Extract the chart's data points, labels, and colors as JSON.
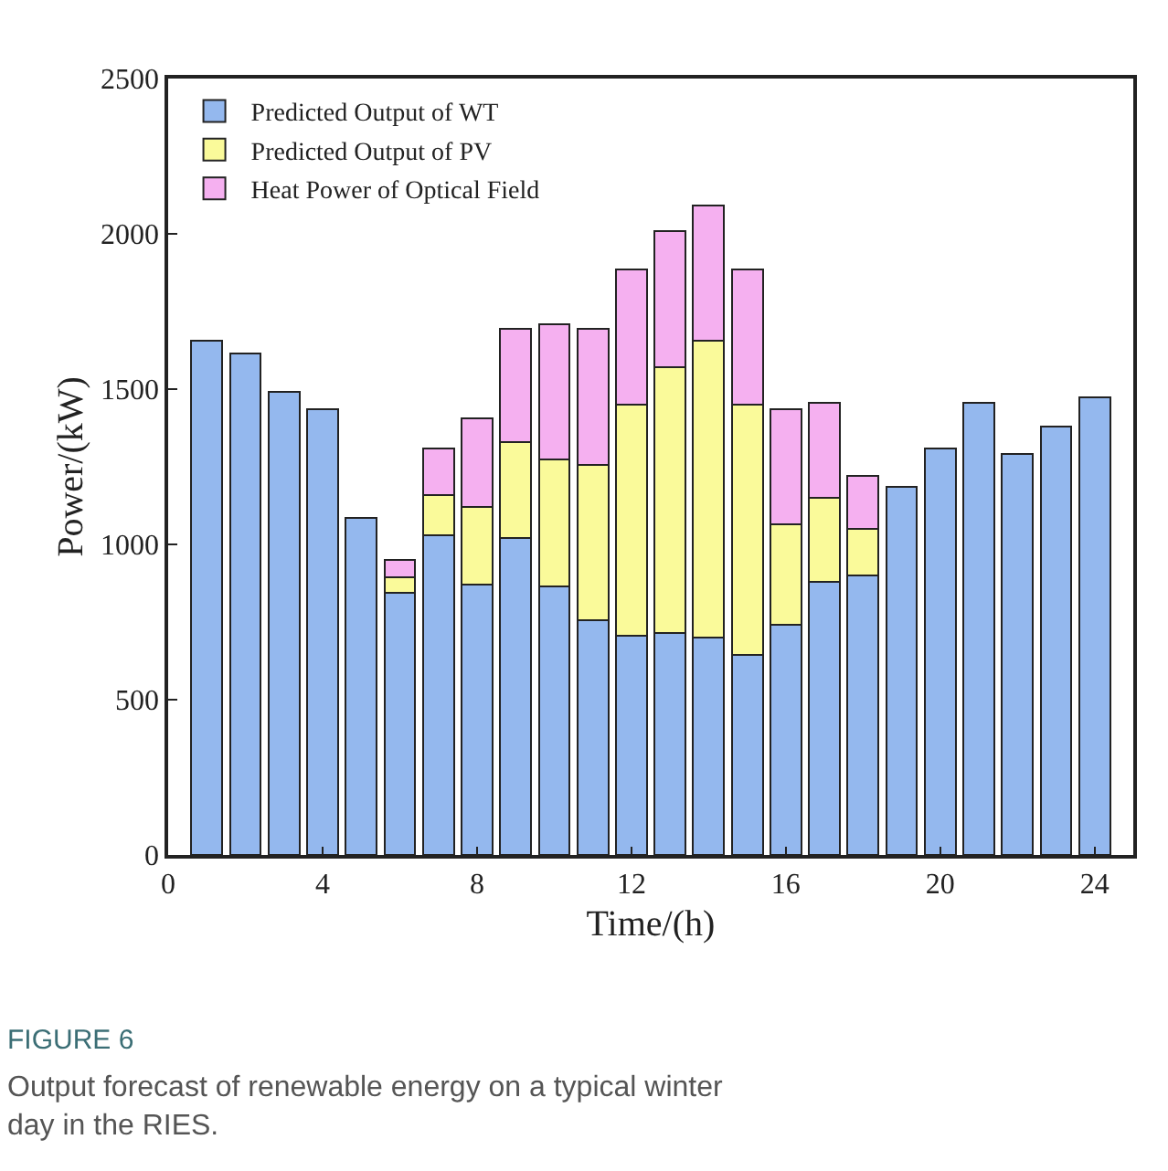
{
  "chart_data": {
    "type": "bar",
    "stacked": true,
    "xlabel": "Time/(h)",
    "ylabel": "Power/(kW)",
    "x": [
      1,
      2,
      3,
      4,
      5,
      6,
      7,
      8,
      9,
      10,
      11,
      12,
      13,
      14,
      15,
      16,
      17,
      18,
      19,
      20,
      21,
      22,
      23,
      24
    ],
    "series": [
      {
        "name": "Predicted Output of WT",
        "color": "#94b8ee",
        "values": [
          1655,
          1615,
          1490,
          1435,
          1085,
          845,
          1030,
          870,
          1020,
          865,
          755,
          705,
          715,
          700,
          645,
          740,
          880,
          900,
          1185,
          1310,
          1455,
          1290,
          1380,
          1475
        ]
      },
      {
        "name": "Predicted Output of PV",
        "color": "#fafa9a",
        "values": [
          null,
          null,
          null,
          null,
          null,
          50,
          130,
          250,
          310,
          410,
          500,
          745,
          855,
          955,
          805,
          325,
          270,
          150,
          null,
          null,
          null,
          null,
          null,
          null
        ]
      },
      {
        "name": "Heat Power of Optical Field",
        "color": "#f5b0f0",
        "values": [
          null,
          null,
          null,
          null,
          null,
          55,
          150,
          285,
          365,
          435,
          440,
          435,
          440,
          435,
          435,
          370,
          305,
          170,
          null,
          null,
          null,
          null,
          null,
          null
        ]
      }
    ],
    "xlim": [
      0,
      25
    ],
    "xticks": [
      0,
      4,
      8,
      12,
      16,
      20,
      24
    ],
    "ylim": [
      0,
      2500
    ],
    "yticks": [
      0,
      500,
      1000,
      1500,
      2000,
      2500
    ],
    "legend": "top left",
    "annotations": [
      "FIGURE 6",
      "Output forecast of renewable energy on a typical winter day in the RIES."
    ]
  }
}
